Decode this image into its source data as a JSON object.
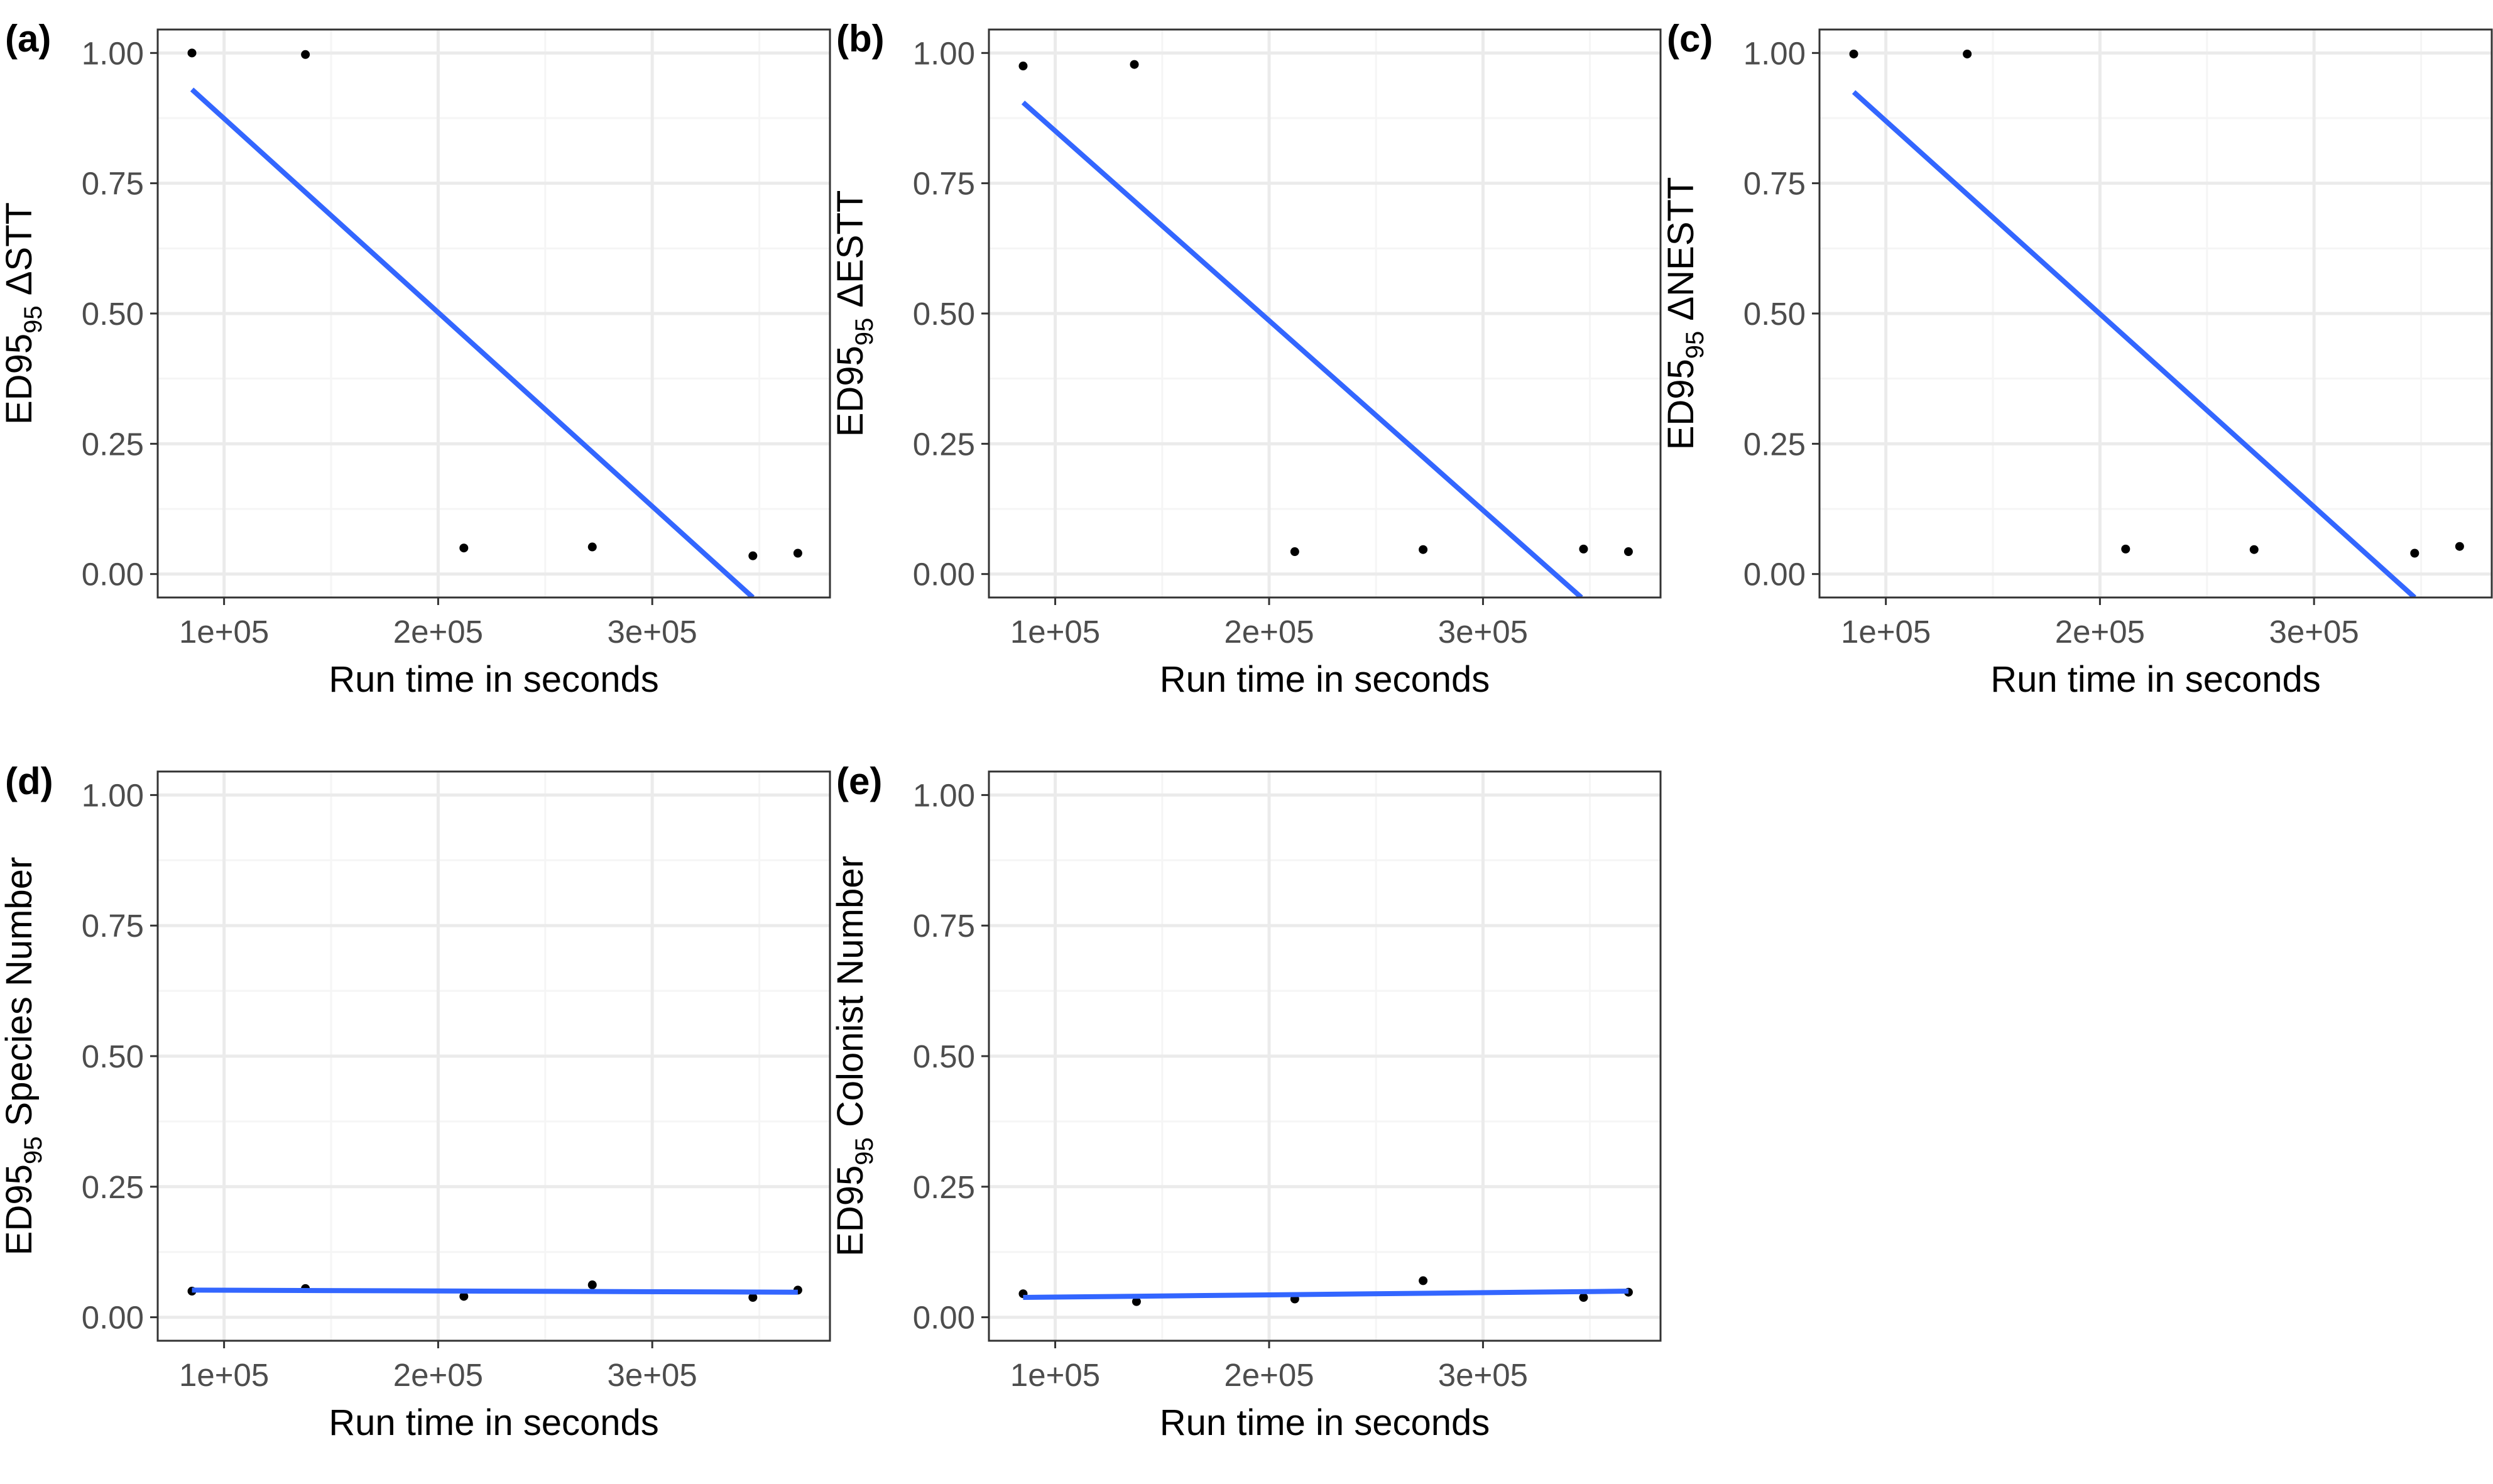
{
  "colors": {
    "background": "#ffffff",
    "panel_border": "#333333",
    "grid_major": "#ebebeb",
    "grid_minor": "#f5f5f5",
    "points": "#000000",
    "fit_line": "#3366ff"
  },
  "chart_data": [
    {
      "type": "scatter",
      "panel_label": "(a)",
      "ylabel_main": "ED95",
      "ylabel_sub": "95",
      "ylabel_rest": " ΔSTT",
      "xlabel": "Run time in seconds",
      "xlim": [
        69000,
        383000
      ],
      "ylim": [
        -0.045,
        1.045
      ],
      "x_ticks": [
        100000,
        200000,
        300000
      ],
      "x_tick_labels": [
        "1e+05",
        "2e+05",
        "3e+05"
      ],
      "y_ticks": [
        0,
        0.25,
        0.5,
        0.75,
        1
      ],
      "y_tick_labels": [
        "0.00",
        "0.25",
        "0.50",
        "0.75",
        "1.00"
      ],
      "grid": true,
      "points": [
        [
          85000,
          1.0
        ],
        [
          138000,
          0.997
        ],
        [
          212000,
          0.05
        ],
        [
          272000,
          0.052
        ],
        [
          347000,
          0.035
        ],
        [
          368000,
          0.04
        ]
      ],
      "fit_line": [
        [
          85000,
          0.93
        ],
        [
          347000,
          -0.045
        ]
      ]
    },
    {
      "type": "scatter",
      "panel_label": "(b)",
      "ylabel_main": "ED95",
      "ylabel_sub": "95",
      "ylabel_rest": " ΔESTT",
      "xlabel": "Run time in seconds",
      "xlim": [
        69000,
        383000
      ],
      "ylim": [
        -0.045,
        1.045
      ],
      "x_ticks": [
        100000,
        200000,
        300000
      ],
      "x_tick_labels": [
        "1e+05",
        "2e+05",
        "3e+05"
      ],
      "y_ticks": [
        0,
        0.25,
        0.5,
        0.75,
        1
      ],
      "y_tick_labels": [
        "0.00",
        "0.25",
        "0.50",
        "0.75",
        "1.00"
      ],
      "grid": true,
      "points": [
        [
          85000,
          0.975
        ],
        [
          137000,
          0.978
        ],
        [
          212000,
          0.043
        ],
        [
          272000,
          0.047
        ],
        [
          347000,
          0.048
        ],
        [
          368000,
          0.043
        ]
      ],
      "fit_line": [
        [
          85000,
          0.905
        ],
        [
          346000,
          -0.045
        ]
      ]
    },
    {
      "type": "scatter",
      "panel_label": "(c)",
      "ylabel_main": "ED95",
      "ylabel_sub": "95",
      "ylabel_rest": " ΔNESTT",
      "xlabel": "Run time in seconds",
      "xlim": [
        69000,
        383000
      ],
      "ylim": [
        -0.045,
        1.045
      ],
      "x_ticks": [
        100000,
        200000,
        300000
      ],
      "x_tick_labels": [
        "1e+05",
        "2e+05",
        "3e+05"
      ],
      "y_ticks": [
        0,
        0.25,
        0.5,
        0.75,
        1
      ],
      "y_tick_labels": [
        "0.00",
        "0.25",
        "0.50",
        "0.75",
        "1.00"
      ],
      "grid": true,
      "points": [
        [
          85000,
          0.998
        ],
        [
          138000,
          0.998
        ],
        [
          212000,
          0.048
        ],
        [
          272000,
          0.047
        ],
        [
          347000,
          0.04
        ],
        [
          368000,
          0.053
        ]
      ],
      "fit_line": [
        [
          85000,
          0.925
        ],
        [
          347000,
          -0.045
        ]
      ]
    },
    {
      "type": "scatter",
      "panel_label": "(d)",
      "ylabel_main": "ED95",
      "ylabel_sub": "95",
      "ylabel_rest": " Species Number",
      "xlabel": "Run time in seconds",
      "xlim": [
        69000,
        383000
      ],
      "ylim": [
        -0.045,
        1.045
      ],
      "x_ticks": [
        100000,
        200000,
        300000
      ],
      "x_tick_labels": [
        "1e+05",
        "2e+05",
        "3e+05"
      ],
      "y_ticks": [
        0,
        0.25,
        0.5,
        0.75,
        1
      ],
      "y_tick_labels": [
        "0.00",
        "0.25",
        "0.50",
        "0.75",
        "1.00"
      ],
      "grid": true,
      "points": [
        [
          85000,
          0.05
        ],
        [
          138000,
          0.055
        ],
        [
          212000,
          0.04
        ],
        [
          272000,
          0.062
        ],
        [
          347000,
          0.038
        ],
        [
          368000,
          0.052
        ]
      ],
      "fit_line": [
        [
          85000,
          0.052
        ],
        [
          368000,
          0.048
        ]
      ]
    },
    {
      "type": "scatter",
      "panel_label": "(e)",
      "ylabel_main": "ED95",
      "ylabel_sub": "95",
      "ylabel_rest": " Colonist Number",
      "xlabel": "Run time in seconds",
      "xlim": [
        69000,
        383000
      ],
      "ylim": [
        -0.045,
        1.045
      ],
      "x_ticks": [
        100000,
        200000,
        300000
      ],
      "x_tick_labels": [
        "1e+05",
        "2e+05",
        "3e+05"
      ],
      "y_ticks": [
        0,
        0.25,
        0.5,
        0.75,
        1
      ],
      "y_tick_labels": [
        "0.00",
        "0.25",
        "0.50",
        "0.75",
        "1.00"
      ],
      "grid": true,
      "points": [
        [
          85000,
          0.045
        ],
        [
          138000,
          0.03
        ],
        [
          212000,
          0.035
        ],
        [
          272000,
          0.07
        ],
        [
          347000,
          0.038
        ],
        [
          368000,
          0.048
        ]
      ],
      "fit_line": [
        [
          85000,
          0.038
        ],
        [
          368000,
          0.05
        ]
      ]
    }
  ]
}
